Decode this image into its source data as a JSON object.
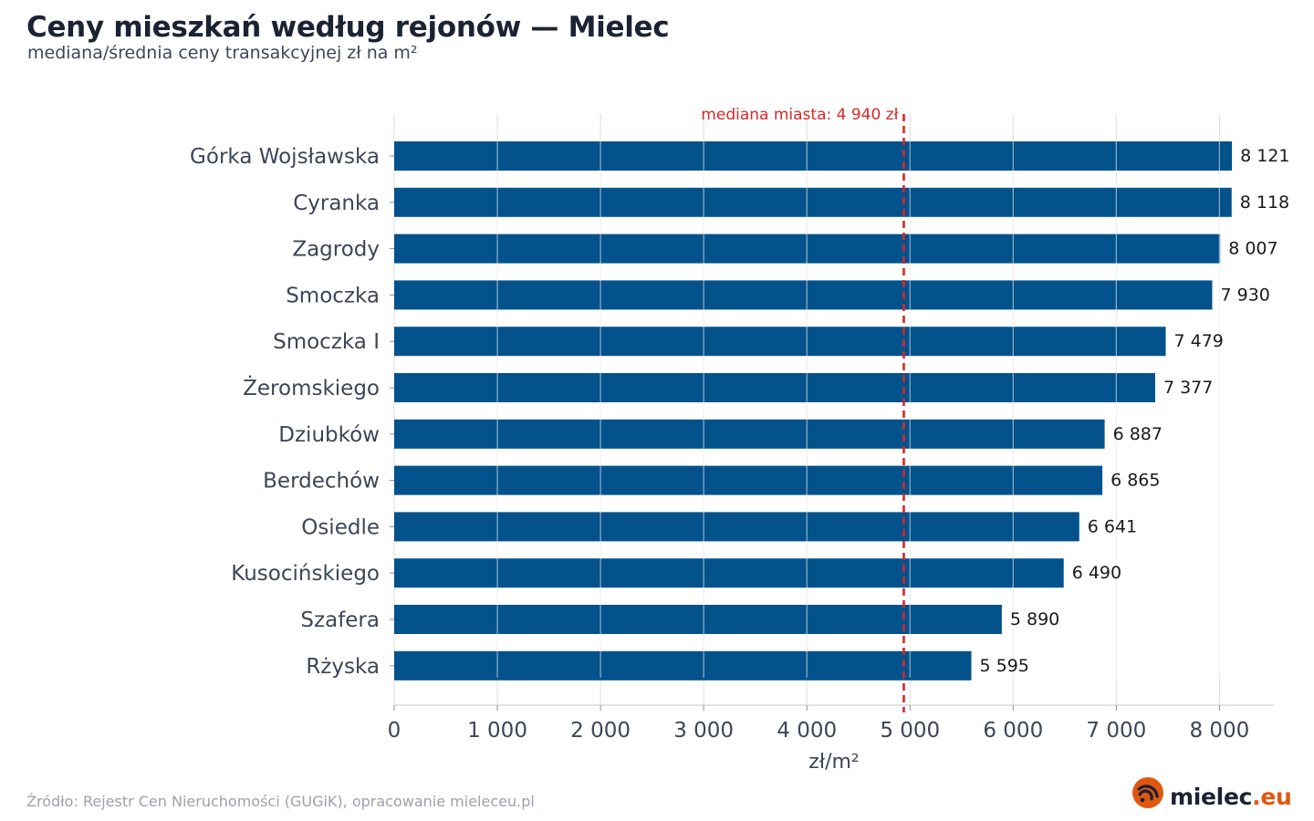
{
  "header": {
    "title": "Ceny mieszkań według rejonów — Mielec",
    "subtitle": "mediana/średnia ceny transakcyjnej zł na m²"
  },
  "footer": {
    "source": "Źródło: Rejestr Cen Nieruchomości (GUGiK), opracowanie mieleceu.pl",
    "logo_text": "mielec",
    "logo_tld": ".eu"
  },
  "colors": {
    "bar": "#03528b",
    "reference_line": "#d62728",
    "grid": "#e3e3e3",
    "axis_text": "#3d4657",
    "value_text": "#1a1a1a",
    "logo_accent": "#e0580f"
  },
  "chart_data": {
    "type": "bar",
    "orientation": "horizontal",
    "categories": [
      "Górka Wojsławska",
      "Cyranka",
      "Zagrody",
      "Smoczka",
      "Smoczka I",
      "Żeromskiego",
      "Dziubków",
      "Berdechów",
      "Osiedle",
      "Kusocińskiego",
      "Szafera",
      "Rżyska"
    ],
    "values": [
      8121,
      8118,
      8007,
      7930,
      7479,
      7377,
      6887,
      6865,
      6641,
      6490,
      5890,
      5595
    ],
    "value_labels": [
      "8 121",
      "8 118",
      "8 007",
      "7 930",
      "7 479",
      "7 377",
      "6 887",
      "6 865",
      "6 641",
      "6 490",
      "5 890",
      "5 595"
    ],
    "xlabel": "zł/m²",
    "ylabel": "",
    "xlim": [
      0,
      8500
    ],
    "xticks": [
      0,
      1000,
      2000,
      3000,
      4000,
      5000,
      6000,
      7000,
      8000
    ],
    "xtick_labels": [
      "0",
      "1 000",
      "2 000",
      "3 000",
      "4 000",
      "5 000",
      "6 000",
      "7 000",
      "8 000"
    ],
    "grid": "vertical",
    "reference_line": {
      "value": 4940,
      "label": "mediana miasta: 4 940 zł",
      "style": "dashed"
    }
  }
}
